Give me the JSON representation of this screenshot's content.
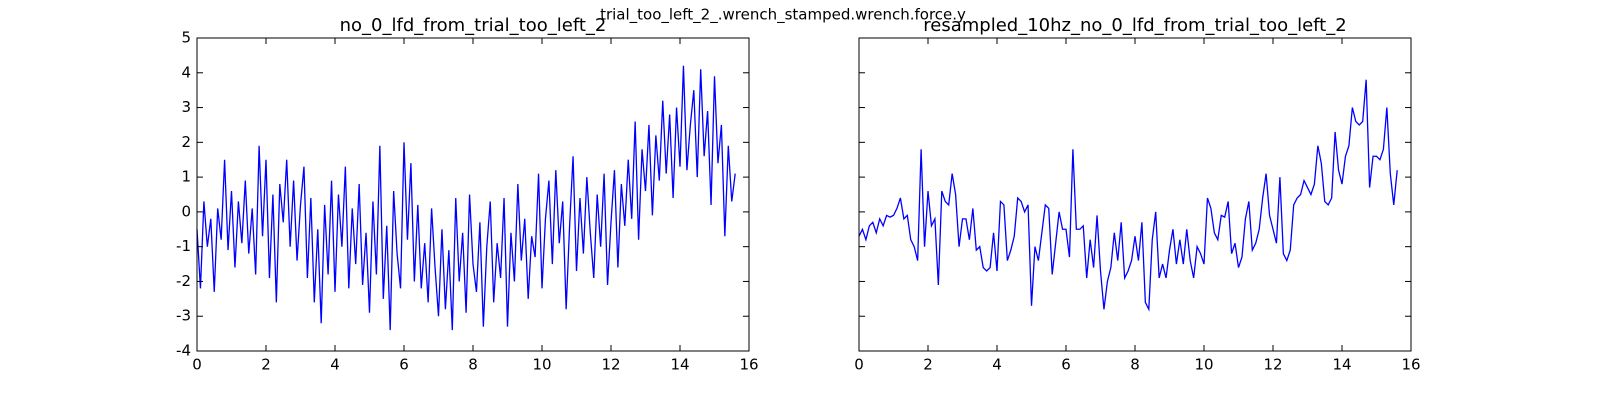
{
  "suptitle": "trial_too_left_2_.wrench_stamped.wrench.force.y",
  "chart_data": [
    {
      "type": "line",
      "title": "no_0_lfd_from_trial_too_left_2",
      "color": "#0000ff",
      "xlim": [
        0,
        16
      ],
      "xticks": [
        0,
        2,
        4,
        6,
        8,
        10,
        12,
        14,
        16
      ],
      "ylim": [
        -4,
        5
      ],
      "yticks": [
        -4,
        -3,
        -2,
        -1,
        0,
        1,
        2,
        3,
        4,
        5
      ],
      "show_ytick_labels": true,
      "x": [
        0,
        0.1,
        0.2,
        0.3,
        0.4,
        0.5,
        0.6,
        0.7,
        0.8,
        0.9,
        1,
        1.1,
        1.2,
        1.3,
        1.4,
        1.5,
        1.6,
        1.7,
        1.8,
        1.9,
        2,
        2.1,
        2.2,
        2.3,
        2.4,
        2.5,
        2.6,
        2.7,
        2.8,
        2.9,
        3,
        3.1,
        3.2,
        3.3,
        3.4,
        3.5,
        3.6,
        3.7,
        3.8,
        3.9,
        4,
        4.1,
        4.2,
        4.3,
        4.4,
        4.5,
        4.6,
        4.7,
        4.8,
        4.9,
        5,
        5.1,
        5.2,
        5.3,
        5.4,
        5.5,
        5.6,
        5.7,
        5.8,
        5.9,
        6,
        6.1,
        6.2,
        6.3,
        6.4,
        6.5,
        6.6,
        6.7,
        6.8,
        6.9,
        7,
        7.1,
        7.2,
        7.3,
        7.4,
        7.5,
        7.6,
        7.7,
        7.8,
        7.9,
        8,
        8.1,
        8.2,
        8.3,
        8.4,
        8.5,
        8.6,
        8.7,
        8.8,
        8.9,
        9,
        9.1,
        9.2,
        9.3,
        9.4,
        9.5,
        9.6,
        9.7,
        9.8,
        9.9,
        10,
        10.1,
        10.2,
        10.3,
        10.4,
        10.5,
        10.6,
        10.7,
        10.8,
        10.9,
        11,
        11.1,
        11.2,
        11.3,
        11.4,
        11.5,
        11.6,
        11.7,
        11.8,
        11.9,
        12,
        12.1,
        12.2,
        12.3,
        12.4,
        12.5,
        12.6,
        12.7,
        12.8,
        12.9,
        13,
        13.1,
        13.2,
        13.3,
        13.4,
        13.5,
        13.6,
        13.7,
        13.8,
        13.9,
        14,
        14.1,
        14.2,
        14.3,
        14.4,
        14.5,
        14.6,
        14.7,
        14.8,
        14.9,
        15,
        15.1,
        15.2,
        15.3,
        15.4,
        15.5,
        15.6
      ],
      "values": [
        -0.5,
        -2.2,
        0.3,
        -1.0,
        -0.2,
        -2.3,
        0.1,
        -0.8,
        1.5,
        -1.1,
        0.6,
        -1.6,
        0.3,
        -0.9,
        0.9,
        -1.2,
        0.1,
        -1.8,
        1.9,
        -0.7,
        1.5,
        -1.9,
        0.5,
        -2.6,
        0.8,
        -0.3,
        1.5,
        -1.0,
        0.9,
        -1.4,
        0.2,
        1.3,
        -1.9,
        0.4,
        -2.6,
        -0.5,
        -3.2,
        0.2,
        -1.8,
        0.9,
        -2.3,
        0.5,
        -1.0,
        1.3,
        -2.2,
        0.1,
        -1.5,
        0.8,
        -2.1,
        -0.6,
        -2.9,
        0.3,
        -1.8,
        1.9,
        -2.5,
        -0.4,
        -3.4,
        0.6,
        -1.2,
        -2.2,
        2.0,
        -0.8,
        1.4,
        -2.0,
        0.2,
        -2.2,
        -0.9,
        -2.6,
        0.1,
        -1.6,
        -3.0,
        -0.5,
        -2.8,
        -1.1,
        -3.4,
        0.4,
        -2.0,
        -0.6,
        -2.9,
        0.5,
        -1.5,
        -2.3,
        -0.3,
        -3.3,
        -1.0,
        0.3,
        -2.6,
        -0.9,
        -1.9,
        0.4,
        -3.3,
        -0.6,
        -2.0,
        0.8,
        -1.4,
        -0.2,
        -2.5,
        -0.7,
        -1.3,
        1.1,
        -2.2,
        -0.2,
        0.9,
        -1.5,
        1.2,
        -0.9,
        0.3,
        -2.8,
        -0.4,
        1.6,
        -1.7,
        0.4,
        -1.2,
        1.0,
        -0.6,
        -1.9,
        0.5,
        -1.0,
        1.1,
        -2.1,
        -0.3,
        1.2,
        -1.6,
        0.8,
        -0.4,
        1.5,
        -0.2,
        2.6,
        -0.8,
        1.8,
        0.6,
        2.5,
        -0.1,
        2.2,
        0.9,
        3.2,
        1.1,
        2.8,
        0.4,
        3.0,
        1.3,
        4.2,
        1.2,
        2.5,
        3.5,
        1.0,
        4.1,
        1.6,
        2.9,
        0.2,
        3.9,
        1.4,
        2.5,
        -0.7,
        1.9,
        0.3,
        1.1
      ]
    },
    {
      "type": "line",
      "title": "resampled_10hz_no_0_lfd_from_trial_too_left_2",
      "color": "#0000ff",
      "xlim": [
        0,
        16
      ],
      "xticks": [
        0,
        2,
        4,
        6,
        8,
        10,
        12,
        14,
        16
      ],
      "ylim": [
        -4,
        5
      ],
      "yticks": [
        -4,
        -3,
        -2,
        -1,
        0,
        1,
        2,
        3,
        4,
        5
      ],
      "show_ytick_labels": false,
      "x": [
        0,
        0.1,
        0.2,
        0.3,
        0.4,
        0.5,
        0.6,
        0.7,
        0.8,
        0.9,
        1,
        1.1,
        1.2,
        1.3,
        1.4,
        1.5,
        1.6,
        1.7,
        1.8,
        1.9,
        2,
        2.1,
        2.2,
        2.3,
        2.4,
        2.5,
        2.6,
        2.7,
        2.8,
        2.9,
        3,
        3.1,
        3.2,
        3.3,
        3.4,
        3.5,
        3.6,
        3.7,
        3.8,
        3.9,
        4,
        4.1,
        4.2,
        4.3,
        4.4,
        4.5,
        4.6,
        4.7,
        4.8,
        4.9,
        5,
        5.1,
        5.2,
        5.3,
        5.4,
        5.5,
        5.6,
        5.7,
        5.8,
        5.9,
        6,
        6.1,
        6.2,
        6.3,
        6.4,
        6.5,
        6.6,
        6.7,
        6.8,
        6.9,
        7,
        7.1,
        7.2,
        7.3,
        7.4,
        7.5,
        7.6,
        7.7,
        7.8,
        7.9,
        8,
        8.1,
        8.2,
        8.3,
        8.4,
        8.5,
        8.6,
        8.7,
        8.8,
        8.9,
        9,
        9.1,
        9.2,
        9.3,
        9.4,
        9.5,
        9.6,
        9.7,
        9.8,
        9.9,
        10,
        10.1,
        10.2,
        10.3,
        10.4,
        10.5,
        10.6,
        10.7,
        10.8,
        10.9,
        11,
        11.1,
        11.2,
        11.3,
        11.4,
        11.5,
        11.6,
        11.7,
        11.8,
        11.9,
        12,
        12.1,
        12.2,
        12.3,
        12.4,
        12.5,
        12.6,
        12.7,
        12.8,
        12.9,
        13,
        13.1,
        13.2,
        13.3,
        13.4,
        13.5,
        13.6,
        13.7,
        13.8,
        13.9,
        14,
        14.1,
        14.2,
        14.3,
        14.4,
        14.5,
        14.6,
        14.7,
        14.8,
        14.9,
        15,
        15.1,
        15.2,
        15.3,
        15.4,
        15.5,
        15.6
      ],
      "values": [
        -0.7,
        -0.5,
        -0.8,
        -0.4,
        -0.3,
        -0.6,
        -0.2,
        -0.4,
        -0.1,
        -0.15,
        -0.1,
        0.1,
        0.4,
        -0.2,
        -0.1,
        -0.8,
        -1.0,
        -1.4,
        1.8,
        -1.0,
        0.6,
        -0.4,
        -0.2,
        -2.1,
        0.6,
        0.3,
        0.2,
        1.1,
        0.5,
        -1.0,
        -0.2,
        -0.2,
        -0.8,
        0.1,
        -1.1,
        -1.0,
        -1.6,
        -1.7,
        -1.6,
        -0.6,
        -1.7,
        0.3,
        0.2,
        -1.4,
        -1.1,
        -0.7,
        0.4,
        0.3,
        0.0,
        0.2,
        -2.7,
        -1.0,
        -1.4,
        -0.6,
        0.2,
        0.1,
        -1.8,
        -0.9,
        0.0,
        -0.5,
        -0.5,
        -1.3,
        1.8,
        -0.5,
        -0.5,
        -0.4,
        -1.9,
        -0.8,
        -1.6,
        -0.1,
        -1.7,
        -2.8,
        -2.0,
        -1.6,
        -0.6,
        -1.4,
        -0.3,
        -1.9,
        -1.7,
        -1.4,
        -0.7,
        -1.4,
        -0.3,
        -2.6,
        -2.8,
        -0.8,
        0.0,
        -1.9,
        -1.5,
        -1.9,
        -1.1,
        -0.5,
        -1.5,
        -0.8,
        -1.5,
        -0.5,
        -1.4,
        -1.9,
        -1.0,
        -1.2,
        -1.5,
        0.4,
        0.1,
        -0.6,
        -0.8,
        -0.1,
        -0.15,
        0.3,
        -1.2,
        -0.9,
        -1.6,
        -1.3,
        -0.2,
        0.3,
        -1.1,
        -0.9,
        -0.5,
        0.4,
        1.1,
        -0.1,
        -0.5,
        -0.9,
        1.0,
        -1.2,
        -1.4,
        -1.1,
        0.2,
        0.4,
        0.5,
        0.9,
        0.7,
        0.5,
        0.8,
        1.9,
        1.4,
        0.3,
        0.2,
        0.4,
        2.3,
        1.2,
        0.8,
        1.6,
        1.9,
        3.0,
        2.6,
        2.5,
        2.6,
        3.8,
        0.7,
        1.6,
        1.6,
        1.5,
        1.8,
        3.0,
        1.1,
        0.2,
        1.2
      ]
    }
  ]
}
